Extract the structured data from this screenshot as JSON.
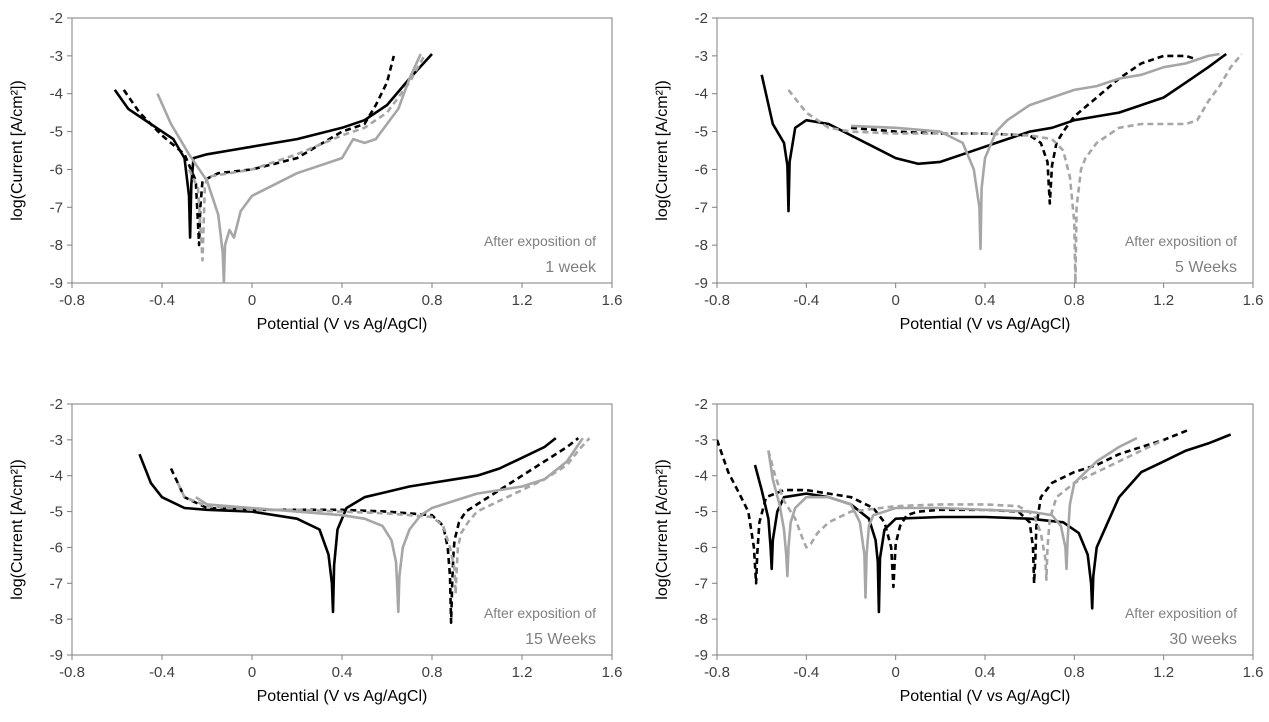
{
  "colors": {
    "black": "#000000",
    "gray": "#a6a6a6",
    "axis": "#7f7f7f",
    "annotation": "#7f7f7f"
  },
  "chart_data": [
    {
      "type": "line",
      "xlabel": "Potential (V vs Ag/AgCl)",
      "ylabel": "log(Current [A/cm²])",
      "xlim": [
        -0.8,
        1.6
      ],
      "ylim": [
        -9,
        -2
      ],
      "xticks": [
        "-0.8",
        "-0.4",
        "0",
        "0.4",
        "0.8",
        "1.2",
        "1.6"
      ],
      "yticks": [
        "-2",
        "-3",
        "-4",
        "-5",
        "-6",
        "-7",
        "-8",
        "-9"
      ],
      "annotation": [
        "After exposition of",
        "1 week"
      ],
      "series": [
        {
          "color": "black",
          "dash": false,
          "x": [
            -0.61,
            -0.55,
            -0.45,
            -0.35,
            -0.3,
            -0.28,
            -0.275,
            -0.27,
            -0.26,
            -0.2,
            -0.1,
            0,
            0.2,
            0.4,
            0.5,
            0.6,
            0.7,
            0.8
          ],
          "y": [
            -3.9,
            -4.4,
            -4.8,
            -5.2,
            -5.7,
            -6.7,
            -7.8,
            -6.4,
            -5.7,
            -5.6,
            -5.5,
            -5.4,
            -5.2,
            -4.9,
            -4.7,
            -4.3,
            -3.6,
            -2.95
          ]
        },
        {
          "color": "black",
          "dash": true,
          "x": [
            -0.57,
            -0.5,
            -0.4,
            -0.3,
            -0.25,
            -0.235,
            -0.23,
            -0.22,
            -0.15,
            0,
            0.2,
            0.4,
            0.5,
            0.55,
            0.6,
            0.63
          ],
          "y": [
            -3.9,
            -4.5,
            -5.1,
            -5.6,
            -6.3,
            -8.0,
            -7.0,
            -6.3,
            -6.1,
            -6.0,
            -5.7,
            -5.0,
            -4.8,
            -4.3,
            -3.7,
            -3.0
          ]
        },
        {
          "color": "gray",
          "dash": false,
          "x": [
            -0.42,
            -0.36,
            -0.28,
            -0.2,
            -0.15,
            -0.13,
            -0.125,
            -0.12,
            -0.1,
            -0.08,
            -0.05,
            0,
            0.2,
            0.4,
            0.45,
            0.5,
            0.55,
            0.6,
            0.65,
            0.7,
            0.75
          ],
          "y": [
            -4.0,
            -4.8,
            -5.6,
            -6.3,
            -7.2,
            -8.2,
            -9.0,
            -8.0,
            -7.6,
            -7.8,
            -7.1,
            -6.7,
            -6.1,
            -5.7,
            -5.2,
            -5.3,
            -5.2,
            -4.8,
            -4.4,
            -3.6,
            -2.95
          ]
        },
        {
          "color": "gray",
          "dash": true,
          "x": [
            -0.28,
            -0.24,
            -0.22,
            -0.21,
            -0.2,
            -0.15,
            0,
            0.2,
            0.4,
            0.5,
            0.6,
            0.7,
            0.77
          ],
          "y": [
            -6.0,
            -6.5,
            -8.4,
            -6.5,
            -6.2,
            -6.15,
            -6.0,
            -5.6,
            -5.1,
            -4.9,
            -4.5,
            -3.7,
            -2.95
          ]
        }
      ]
    },
    {
      "type": "line",
      "xlabel": "Potential (V vs Ag/AgCl)",
      "ylabel": "log(Current [A/cm²])",
      "xlim": [
        -0.8,
        1.6
      ],
      "ylim": [
        -9,
        -2
      ],
      "xticks": [
        "-0.8",
        "-0.4",
        "0",
        "0.4",
        "0.8",
        "1.2",
        "1.6"
      ],
      "yticks": [
        "-2",
        "-3",
        "-4",
        "-5",
        "-6",
        "-7",
        "-8",
        "-9"
      ],
      "annotation": [
        "After exposition of",
        "5 Weeks"
      ],
      "series": [
        {
          "color": "black",
          "dash": false,
          "x": [
            -0.6,
            -0.55,
            -0.5,
            -0.485,
            -0.48,
            -0.475,
            -0.45,
            -0.4,
            -0.3,
            -0.2,
            -0.1,
            0,
            0.1,
            0.2,
            0.3,
            0.4,
            0.5,
            0.6,
            0.7,
            0.8,
            0.9,
            1.0,
            1.1,
            1.2,
            1.3,
            1.4,
            1.48
          ],
          "y": [
            -3.5,
            -4.8,
            -5.3,
            -5.9,
            -7.1,
            -5.8,
            -4.9,
            -4.7,
            -4.8,
            -5.1,
            -5.4,
            -5.7,
            -5.85,
            -5.8,
            -5.6,
            -5.4,
            -5.2,
            -5.0,
            -4.9,
            -4.7,
            -4.6,
            -4.5,
            -4.3,
            -4.1,
            -3.7,
            -3.3,
            -2.95
          ]
        },
        {
          "color": "black",
          "dash": true,
          "x": [
            -0.2,
            0,
            0.2,
            0.4,
            0.6,
            0.65,
            0.68,
            0.69,
            0.7,
            0.72,
            0.75,
            0.8,
            0.9,
            1.0,
            1.1,
            1.2,
            1.3,
            1.35
          ],
          "y": [
            -4.9,
            -5.0,
            -5.05,
            -5.05,
            -5.1,
            -5.3,
            -5.8,
            -6.9,
            -5.9,
            -5.3,
            -5.0,
            -4.6,
            -4.1,
            -3.6,
            -3.2,
            -3.0,
            -3.0,
            -3.1
          ]
        },
        {
          "color": "gray",
          "dash": false,
          "x": [
            -0.2,
            0,
            0.2,
            0.3,
            0.35,
            0.375,
            0.38,
            0.385,
            0.4,
            0.45,
            0.5,
            0.6,
            0.7,
            0.8,
            0.9,
            1.0,
            1.1,
            1.2,
            1.3,
            1.4,
            1.45
          ],
          "y": [
            -4.85,
            -4.9,
            -5.0,
            -5.3,
            -6.0,
            -7.0,
            -8.1,
            -6.5,
            -5.7,
            -5.0,
            -4.7,
            -4.3,
            -4.1,
            -3.9,
            -3.8,
            -3.6,
            -3.5,
            -3.3,
            -3.2,
            -3.0,
            -2.95
          ]
        },
        {
          "color": "gray",
          "dash": true,
          "x": [
            -0.48,
            -0.4,
            -0.3,
            -0.2,
            0,
            0.2,
            0.4,
            0.6,
            0.7,
            0.75,
            0.78,
            0.8,
            0.805,
            0.81,
            0.83,
            0.85,
            0.9,
            1.0,
            1.1,
            1.2,
            1.3,
            1.35,
            1.4,
            1.45,
            1.5,
            1.55
          ],
          "y": [
            -3.9,
            -4.5,
            -4.9,
            -5.0,
            -5.05,
            -5.05,
            -5.05,
            -5.1,
            -5.2,
            -5.5,
            -6.2,
            -7.4,
            -9.0,
            -7.0,
            -6.0,
            -5.7,
            -5.3,
            -4.9,
            -4.8,
            -4.8,
            -4.8,
            -4.7,
            -4.2,
            -3.8,
            -3.3,
            -2.95
          ]
        }
      ]
    },
    {
      "type": "line",
      "xlabel": "Potential (V vs Ag/AgCl)",
      "ylabel": "log(Current [A/cm²])",
      "xlim": [
        -0.8,
        1.6
      ],
      "ylim": [
        -9,
        -2
      ],
      "xticks": [
        "-0.8",
        "-0.4",
        "0",
        "0.4",
        "0.8",
        "1.2",
        "1.6"
      ],
      "yticks": [
        "-2",
        "-3",
        "-4",
        "-5",
        "-6",
        "-7",
        "-8",
        "-9"
      ],
      "annotation": [
        "After exposition of",
        "15 Weeks"
      ],
      "series": [
        {
          "color": "black",
          "dash": false,
          "x": [
            -0.5,
            -0.45,
            -0.4,
            -0.3,
            -0.2,
            0,
            0.2,
            0.3,
            0.34,
            0.355,
            0.36,
            0.365,
            0.38,
            0.42,
            0.5,
            0.6,
            0.7,
            0.8,
            0.9,
            1.0,
            1.1,
            1.2,
            1.3,
            1.35
          ],
          "y": [
            -3.4,
            -4.2,
            -4.6,
            -4.9,
            -4.95,
            -5.0,
            -5.2,
            -5.5,
            -6.2,
            -7.0,
            -7.8,
            -6.5,
            -5.5,
            -4.9,
            -4.6,
            -4.45,
            -4.3,
            -4.2,
            -4.1,
            -4.0,
            -3.8,
            -3.5,
            -3.2,
            -2.95
          ]
        },
        {
          "color": "black",
          "dash": true,
          "x": [
            -0.36,
            -0.3,
            -0.2,
            0,
            0.2,
            0.4,
            0.6,
            0.8,
            0.85,
            0.87,
            0.88,
            0.885,
            0.89,
            0.895,
            0.9,
            0.92,
            0.95,
            1.0,
            1.1,
            1.2,
            1.3,
            1.4,
            1.45
          ],
          "y": [
            -3.8,
            -4.6,
            -4.9,
            -4.95,
            -4.95,
            -4.95,
            -5.0,
            -5.1,
            -5.4,
            -6.0,
            -6.8,
            -8.1,
            -7.0,
            -6.2,
            -5.8,
            -5.3,
            -5.0,
            -4.8,
            -4.4,
            -4.0,
            -3.6,
            -3.2,
            -2.95
          ]
        },
        {
          "color": "gray",
          "dash": false,
          "x": [
            -0.25,
            -0.2,
            0,
            0.2,
            0.4,
            0.5,
            0.58,
            0.62,
            0.64,
            0.645,
            0.65,
            0.655,
            0.67,
            0.7,
            0.75,
            0.8,
            0.9,
            1.0,
            1.1,
            1.2,
            1.3,
            1.4,
            1.47
          ],
          "y": [
            -4.6,
            -4.8,
            -4.9,
            -5.0,
            -5.1,
            -5.2,
            -5.4,
            -5.8,
            -6.4,
            -7.0,
            -7.8,
            -6.8,
            -6.0,
            -5.5,
            -5.1,
            -4.9,
            -4.7,
            -4.5,
            -4.4,
            -4.3,
            -4.1,
            -3.6,
            -2.95
          ]
        },
        {
          "color": "gray",
          "dash": true,
          "x": [
            -0.33,
            -0.3,
            -0.2,
            0,
            0.2,
            0.4,
            0.6,
            0.8,
            0.85,
            0.88,
            0.9,
            0.905,
            0.91,
            0.915,
            0.93,
            0.96,
            1.0,
            1.1,
            1.2,
            1.3,
            1.4,
            1.45,
            1.5
          ],
          "y": [
            -4.2,
            -4.6,
            -4.85,
            -4.95,
            -4.95,
            -5.0,
            -5.05,
            -5.15,
            -5.4,
            -6.0,
            -6.6,
            -7.3,
            -6.6,
            -6.0,
            -5.6,
            -5.3,
            -5.0,
            -4.7,
            -4.4,
            -4.1,
            -3.7,
            -3.3,
            -2.95
          ]
        }
      ]
    },
    {
      "type": "line",
      "xlabel": "Potential (V vs Ag/AgCl)",
      "ylabel": "log(Current [A/cm²])",
      "xlim": [
        -0.8,
        1.6
      ],
      "ylim": [
        -9,
        -2
      ],
      "xticks": [
        "-0.8",
        "-0.4",
        "0",
        "0.4",
        "0.8",
        "1.2",
        "1.6"
      ],
      "yticks": [
        "-2",
        "-3",
        "-4",
        "-5",
        "-6",
        "-7",
        "-8",
        "-9"
      ],
      "annotation": [
        "After exposition of",
        "30 weeks"
      ],
      "series": [
        {
          "color": "black",
          "dash": false,
          "x": [
            -0.63,
            -0.6,
            -0.57,
            -0.56,
            -0.555,
            -0.55,
            -0.53,
            -0.5,
            -0.4,
            -0.3,
            -0.2,
            -0.12,
            -0.09,
            -0.08,
            -0.075,
            -0.07,
            -0.05,
            0,
            0.2,
            0.4,
            0.6,
            0.75,
            0.82,
            0.86,
            0.875,
            0.88,
            0.885,
            0.9,
            0.95,
            1.0,
            1.1,
            1.2,
            1.3,
            1.4,
            1.5
          ],
          "y": [
            -3.7,
            -4.4,
            -5.2,
            -6.0,
            -6.6,
            -5.8,
            -5.0,
            -4.6,
            -4.5,
            -4.6,
            -4.8,
            -5.2,
            -5.8,
            -6.4,
            -7.8,
            -6.3,
            -5.5,
            -5.2,
            -5.15,
            -5.15,
            -5.2,
            -5.3,
            -5.6,
            -6.2,
            -7.0,
            -7.7,
            -6.8,
            -6.0,
            -5.3,
            -4.6,
            -3.9,
            -3.6,
            -3.3,
            -3.1,
            -2.85
          ]
        },
        {
          "color": "black",
          "dash": true,
          "x": [
            -0.8,
            -0.75,
            -0.7,
            -0.66,
            -0.635,
            -0.625,
            -0.62,
            -0.61,
            -0.58,
            -0.5,
            -0.4,
            -0.3,
            -0.2,
            -0.1,
            -0.05,
            -0.02,
            -0.01,
            -0.005,
            0,
            0.02,
            0.05,
            0.1,
            0.2,
            0.4,
            0.55,
            0.6,
            0.615,
            0.62,
            0.625,
            0.63,
            0.65,
            0.7,
            0.8,
            0.9,
            1.0,
            1.1,
            1.2,
            1.32
          ],
          "y": [
            -3.0,
            -3.9,
            -4.5,
            -5.0,
            -6.0,
            -7.0,
            -6.2,
            -5.3,
            -4.6,
            -4.4,
            -4.4,
            -4.5,
            -4.6,
            -4.9,
            -5.3,
            -6.0,
            -7.1,
            -6.5,
            -5.9,
            -5.4,
            -5.1,
            -5.0,
            -4.95,
            -4.95,
            -5.0,
            -5.3,
            -6.0,
            -7.0,
            -6.3,
            -5.4,
            -4.6,
            -4.2,
            -3.9,
            -3.7,
            -3.4,
            -3.2,
            -3.0,
            -2.7
          ]
        },
        {
          "color": "gray",
          "dash": false,
          "x": [
            -0.57,
            -0.55,
            -0.52,
            -0.5,
            -0.49,
            -0.485,
            -0.48,
            -0.47,
            -0.45,
            -0.4,
            -0.3,
            -0.2,
            -0.16,
            -0.14,
            -0.135,
            -0.13,
            -0.12,
            -0.1,
            0,
            0.2,
            0.4,
            0.6,
            0.7,
            0.74,
            0.76,
            0.765,
            0.77,
            0.78,
            0.8,
            0.9,
            1.0,
            1.08
          ],
          "y": [
            -3.3,
            -4.1,
            -4.8,
            -5.5,
            -6.2,
            -6.8,
            -6.0,
            -5.3,
            -4.9,
            -4.6,
            -4.6,
            -4.8,
            -5.3,
            -6.2,
            -7.4,
            -6.2,
            -5.4,
            -5.1,
            -4.9,
            -4.9,
            -4.95,
            -5.0,
            -5.1,
            -5.4,
            -6.0,
            -6.6,
            -5.8,
            -4.8,
            -4.2,
            -3.6,
            -3.2,
            -2.95
          ]
        },
        {
          "color": "gray",
          "dash": true,
          "x": [
            -0.57,
            -0.54,
            -0.5,
            -0.45,
            -0.42,
            -0.4,
            -0.38,
            -0.35,
            -0.3,
            -0.2,
            0,
            0.2,
            0.4,
            0.55,
            0.62,
            0.65,
            0.67,
            0.675,
            0.68,
            0.69,
            0.72,
            0.8,
            0.9,
            1.0,
            1.1,
            1.2
          ],
          "y": [
            -3.3,
            -4.0,
            -4.7,
            -5.2,
            -5.7,
            -6.0,
            -5.9,
            -5.6,
            -5.3,
            -5.0,
            -4.85,
            -4.8,
            -4.8,
            -4.85,
            -5.1,
            -5.6,
            -6.3,
            -6.9,
            -6.0,
            -5.2,
            -4.6,
            -4.2,
            -3.9,
            -3.6,
            -3.3,
            -3.0
          ]
        }
      ]
    }
  ]
}
